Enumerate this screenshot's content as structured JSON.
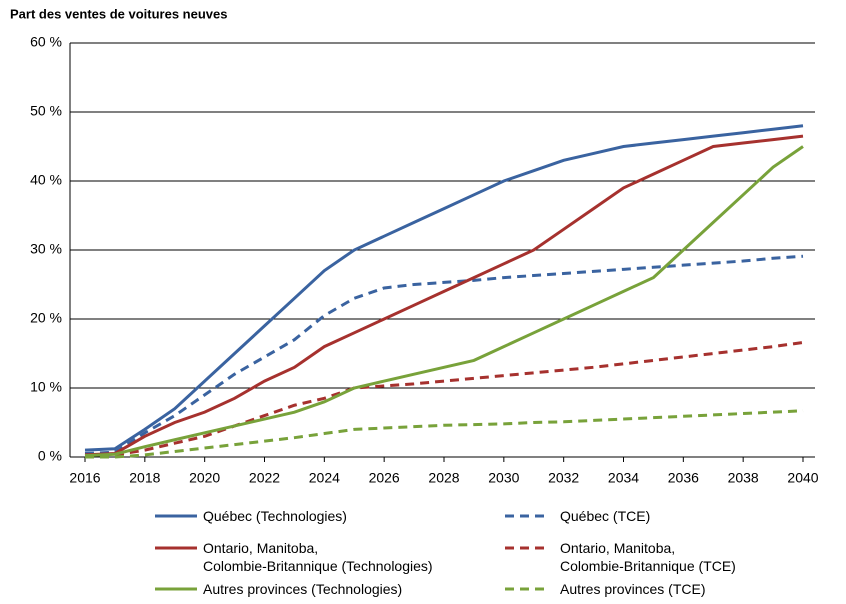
{
  "chart_data": {
    "type": "line",
    "y_label": "Part des ventes de voitures neuves",
    "x": [
      2016,
      2017,
      2018,
      2019,
      2020,
      2021,
      2022,
      2023,
      2024,
      2025,
      2026,
      2027,
      2028,
      2029,
      2030,
      2031,
      2032,
      2033,
      2034,
      2035,
      2036,
      2037,
      2038,
      2039,
      2040
    ],
    "xlim": [
      2016,
      2040
    ],
    "xticks": [
      2016,
      2018,
      2020,
      2022,
      2024,
      2026,
      2028,
      2030,
      2032,
      2034,
      2036,
      2038,
      2040
    ],
    "ylim": [
      0,
      60
    ],
    "yticks": [
      {
        "value": 0,
        "label": "0 %"
      },
      {
        "value": 10,
        "label": "10 %"
      },
      {
        "value": 20,
        "label": "20 %"
      },
      {
        "value": 30,
        "label": "30 %"
      },
      {
        "value": 40,
        "label": "40 %"
      },
      {
        "value": 50,
        "label": "50 %"
      },
      {
        "value": 60,
        "label": "60 %"
      }
    ],
    "grid": true,
    "series": [
      {
        "name": "Québec (Technologies)",
        "color": "#3a63a0",
        "dashed": false,
        "values": [
          1,
          1.2,
          4,
          7,
          11,
          15,
          19,
          23,
          27,
          30,
          32,
          34,
          36,
          38,
          40,
          41.5,
          43,
          44,
          45,
          45.5,
          46,
          46.5,
          47,
          47.5,
          48
        ]
      },
      {
        "name": "Québec (TCE)",
        "color": "#3a63a0",
        "dashed": true,
        "values": [
          0.5,
          0.7,
          3.5,
          6,
          9,
          12,
          14.5,
          17,
          20.5,
          23,
          24.5,
          25,
          25.3,
          25.6,
          26,
          26.3,
          26.6,
          26.9,
          27.2,
          27.5,
          27.8,
          28.1,
          28.4,
          28.8,
          29.1
        ]
      },
      {
        "name": "Ontario, Manitoba,\nColombie-Britannique (Technologies)",
        "color": "#a6312e",
        "dashed": false,
        "values": [
          0.3,
          0.5,
          3,
          5,
          6.5,
          8.5,
          11,
          13,
          16,
          18,
          20,
          22,
          24,
          26,
          28,
          30,
          33,
          36,
          39,
          41,
          43,
          45,
          45.5,
          46,
          46.5
        ]
      },
      {
        "name": "Ontario, Manitoba,\nColombie-Britannique (TCE)",
        "color": "#a6312e",
        "dashed": true,
        "values": [
          0.2,
          0.3,
          1,
          2,
          3,
          4.5,
          6,
          7.5,
          8.5,
          10,
          10.3,
          10.6,
          11,
          11.4,
          11.8,
          12.2,
          12.6,
          13,
          13.5,
          14,
          14.5,
          15,
          15.5,
          16,
          16.6
        ]
      },
      {
        "name": "Autres provinces (Technologies)",
        "color": "#78a23a",
        "dashed": false,
        "values": [
          0.2,
          0.4,
          1.5,
          2.5,
          3.5,
          4.5,
          5.5,
          6.5,
          8,
          10,
          11,
          12,
          13,
          14,
          16,
          18,
          20,
          22,
          24,
          26,
          30,
          34,
          38,
          42,
          45
        ]
      },
      {
        "name": "Autres provinces (TCE)",
        "color": "#78a23a",
        "dashed": true,
        "values": [
          0,
          0,
          0.3,
          0.8,
          1.3,
          1.8,
          2.3,
          2.8,
          3.4,
          4,
          4.2,
          4.4,
          4.6,
          4.7,
          4.8,
          5,
          5.1,
          5.3,
          5.5,
          5.7,
          5.9,
          6.1,
          6.3,
          6.5,
          6.7
        ]
      }
    ]
  }
}
